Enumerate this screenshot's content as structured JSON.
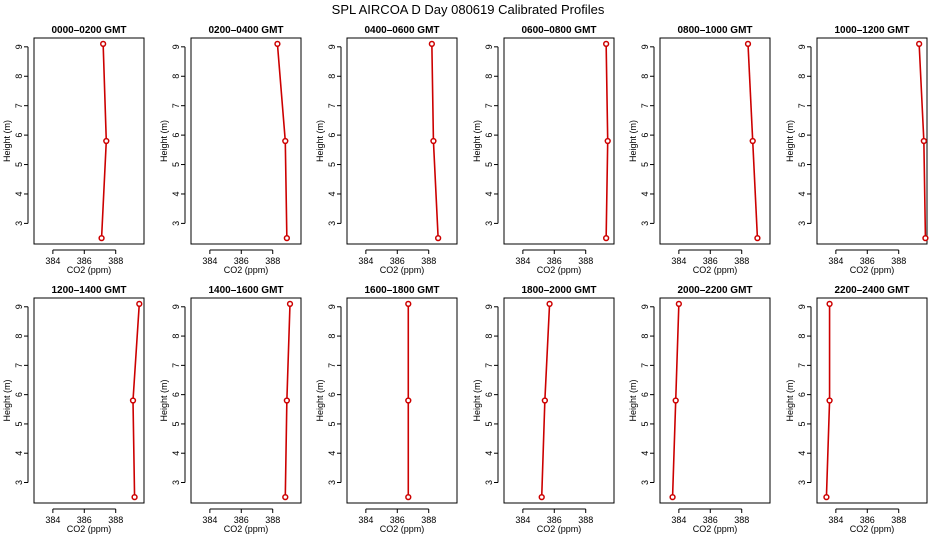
{
  "title": "SPL AIRCOA D  Day 080619  Calibrated Profiles",
  "colors": {
    "series": "#cc0000",
    "axis": "#000000"
  },
  "chart_data": {
    "type": "line",
    "grid": false,
    "xlabel": "CO2 (ppm)",
    "ylabel": "Height (m)",
    "xlim": [
      382.8,
      389.8
    ],
    "ylim": [
      2.3,
      9.3
    ],
    "xticks": [
      384,
      386,
      388
    ],
    "yticks": [
      3,
      4,
      5,
      6,
      7,
      8,
      9
    ],
    "heights": [
      2.5,
      5.8,
      9.1
    ],
    "panels": [
      {
        "title": "0000–0200 GMT",
        "values": [
          387.1,
          387.4,
          387.2
        ]
      },
      {
        "title": "0200–0400 GMT",
        "values": [
          388.9,
          388.8,
          388.3
        ]
      },
      {
        "title": "0400–0600 GMT",
        "values": [
          388.6,
          388.3,
          388.2
        ]
      },
      {
        "title": "0600–0800 GMT",
        "values": [
          389.3,
          389.4,
          389.3
        ]
      },
      {
        "title": "0800–1000 GMT",
        "values": [
          389.0,
          388.7,
          388.4
        ]
      },
      {
        "title": "1000–1200 GMT",
        "values": [
          389.7,
          389.6,
          389.3
        ]
      },
      {
        "title": "1200–1400 GMT",
        "values": [
          389.2,
          389.1,
          389.5
        ]
      },
      {
        "title": "1400–1600 GMT",
        "values": [
          388.8,
          388.9,
          389.1
        ]
      },
      {
        "title": "1600–1800 GMT",
        "values": [
          386.7,
          386.7,
          386.7
        ]
      },
      {
        "title": "1800–2000 GMT",
        "values": [
          385.2,
          385.4,
          385.7
        ]
      },
      {
        "title": "2000–2200 GMT",
        "values": [
          383.6,
          383.8,
          384.0
        ]
      },
      {
        "title": "2200–2400 GMT",
        "values": [
          383.4,
          383.6,
          383.6
        ]
      }
    ]
  }
}
